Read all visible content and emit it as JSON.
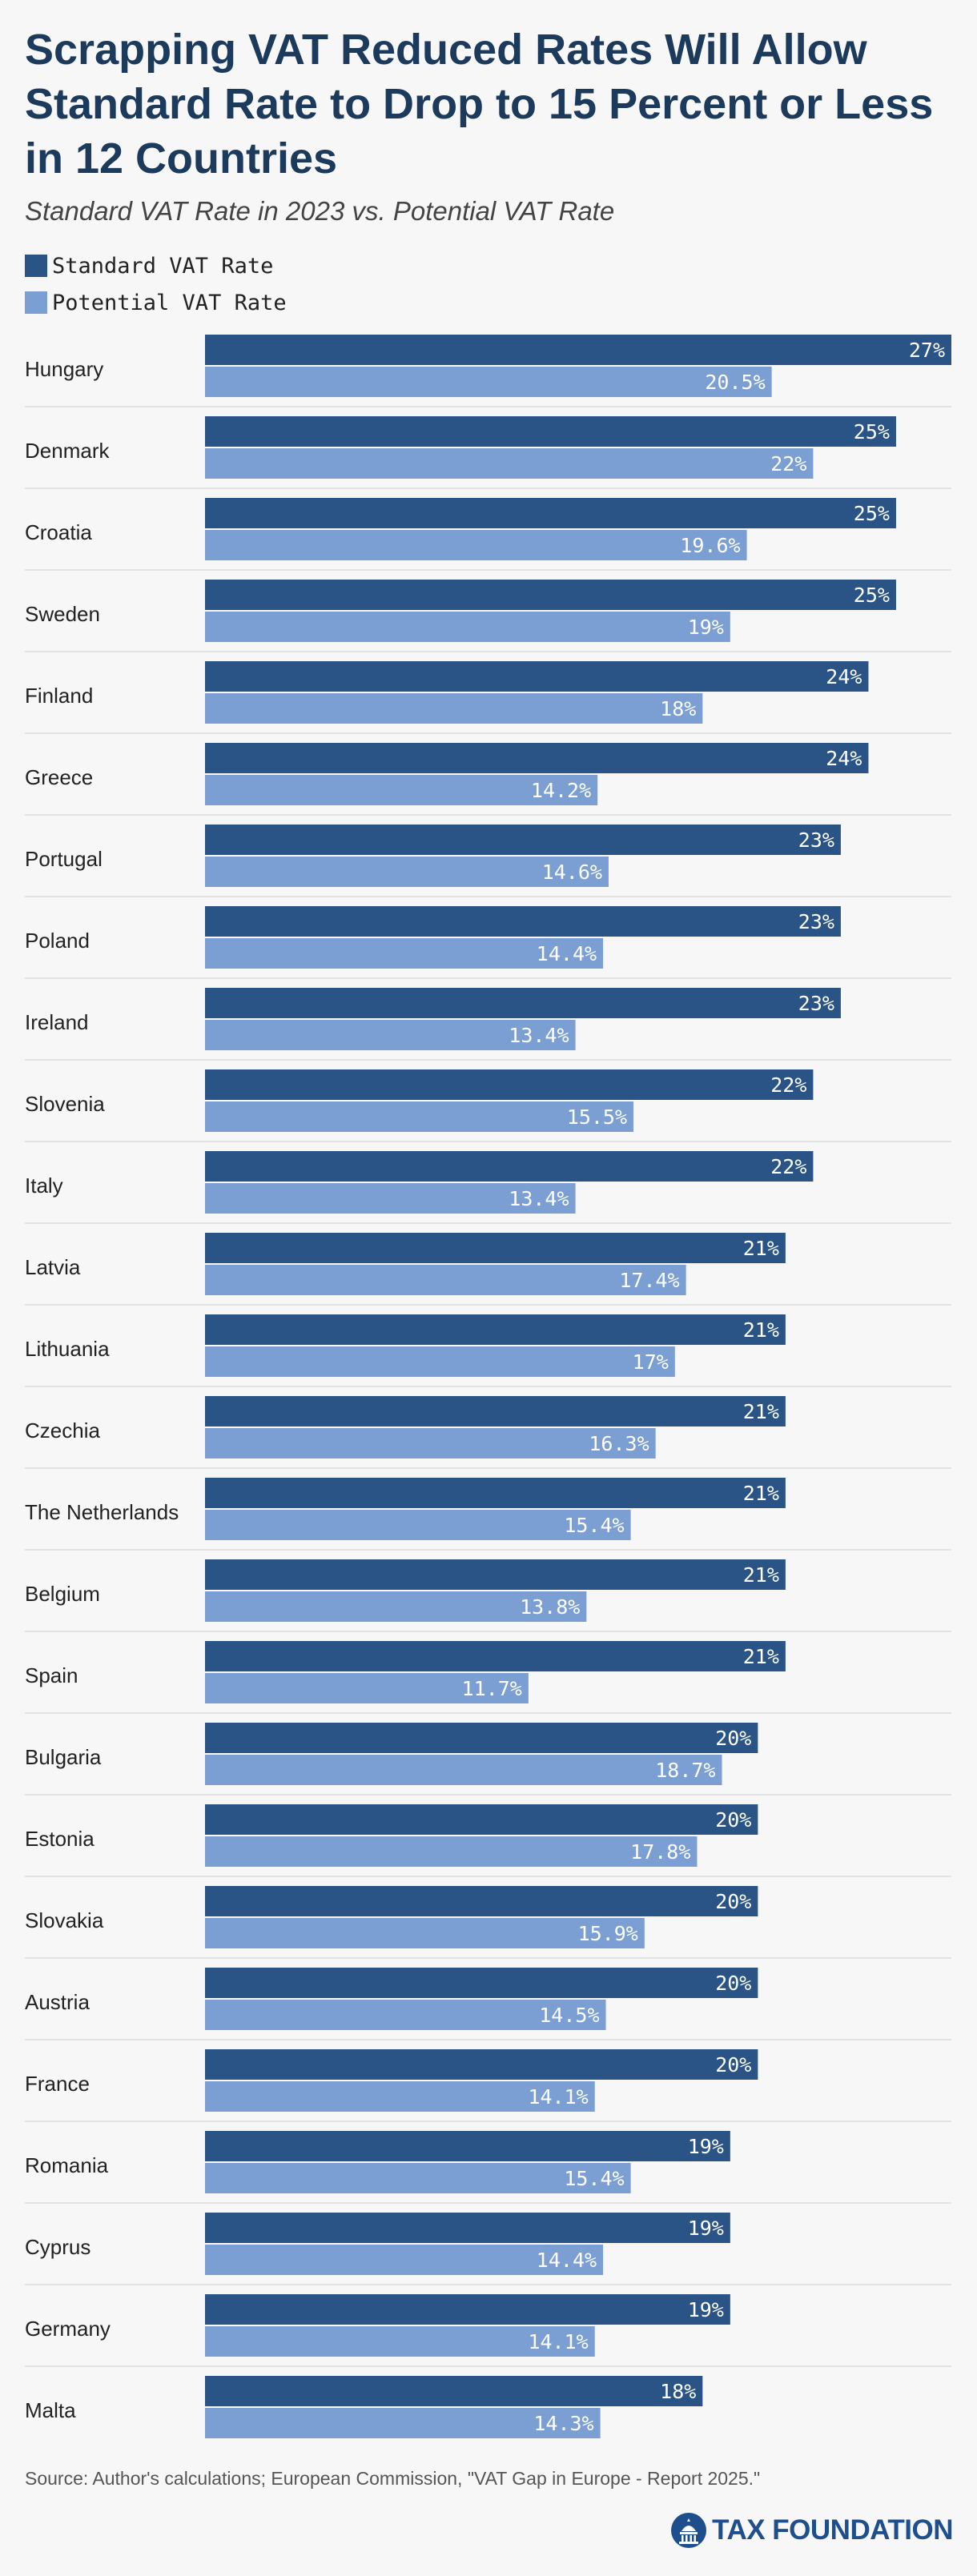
{
  "title": "Scrapping VAT Reduced Rates Will Allow Standard Rate to Drop to 15 Percent or Less in 12 Countries",
  "subtitle": "Standard VAT Rate in 2023 vs. Potential VAT Rate",
  "source": "Source: Author's calculations; European Commission, \"VAT Gap in Europe - Report 2025.\"",
  "brand": "TAX FOUNDATION",
  "colors": {
    "standard": "#2a5485",
    "potential": "#7b9fd3",
    "title": "#1b3a5c",
    "brand": "#1f4e8c"
  },
  "chart_data": {
    "type": "bar",
    "orientation": "horizontal",
    "title": "Scrapping VAT Reduced Rates Will Allow Standard Rate to Drop to 15 Percent or Less in 12 Countries",
    "subtitle": "Standard VAT Rate in 2023 vs. Potential VAT Rate",
    "legend_position": "top-left",
    "grid": false,
    "xlim": [
      0,
      27
    ],
    "categories": [
      "Hungary",
      "Denmark",
      "Croatia",
      "Sweden",
      "Finland",
      "Greece",
      "Portugal",
      "Poland",
      "Ireland",
      "Slovenia",
      "Italy",
      "Latvia",
      "Lithuania",
      "Czechia",
      "The Netherlands",
      "Belgium",
      "Spain",
      "Bulgaria",
      "Estonia",
      "Slovakia",
      "Austria",
      "France",
      "Romania",
      "Cyprus",
      "Germany",
      "Malta"
    ],
    "series": [
      {
        "name": "Standard VAT Rate",
        "values": [
          27,
          25,
          25,
          25,
          24,
          24,
          23,
          23,
          23,
          22,
          22,
          21,
          21,
          21,
          21,
          21,
          21,
          20,
          20,
          20,
          20,
          20,
          19,
          19,
          19,
          18
        ],
        "labels": [
          "27%",
          "25%",
          "25%",
          "25%",
          "24%",
          "24%",
          "23%",
          "23%",
          "23%",
          "22%",
          "22%",
          "21%",
          "21%",
          "21%",
          "21%",
          "21%",
          "21%",
          "20%",
          "20%",
          "20%",
          "20%",
          "20%",
          "19%",
          "19%",
          "19%",
          "18%"
        ]
      },
      {
        "name": "Potential VAT Rate",
        "values": [
          20.5,
          22,
          19.6,
          19,
          18,
          14.2,
          14.6,
          14.4,
          13.4,
          15.5,
          13.4,
          17.4,
          17,
          16.3,
          15.4,
          13.8,
          11.7,
          18.7,
          17.8,
          15.9,
          14.5,
          14.1,
          15.4,
          14.4,
          14.1,
          14.3
        ],
        "labels": [
          "20.5%",
          "22%",
          "19.6%",
          "19%",
          "18%",
          "14.2%",
          "14.6%",
          "14.4%",
          "13.4%",
          "15.5%",
          "13.4%",
          "17.4%",
          "17%",
          "16.3%",
          "15.4%",
          "13.8%",
          "11.7%",
          "18.7%",
          "17.8%",
          "15.9%",
          "14.5%",
          "14.1%",
          "15.4%",
          "14.4%",
          "14.1%",
          "14.3%"
        ]
      }
    ]
  }
}
